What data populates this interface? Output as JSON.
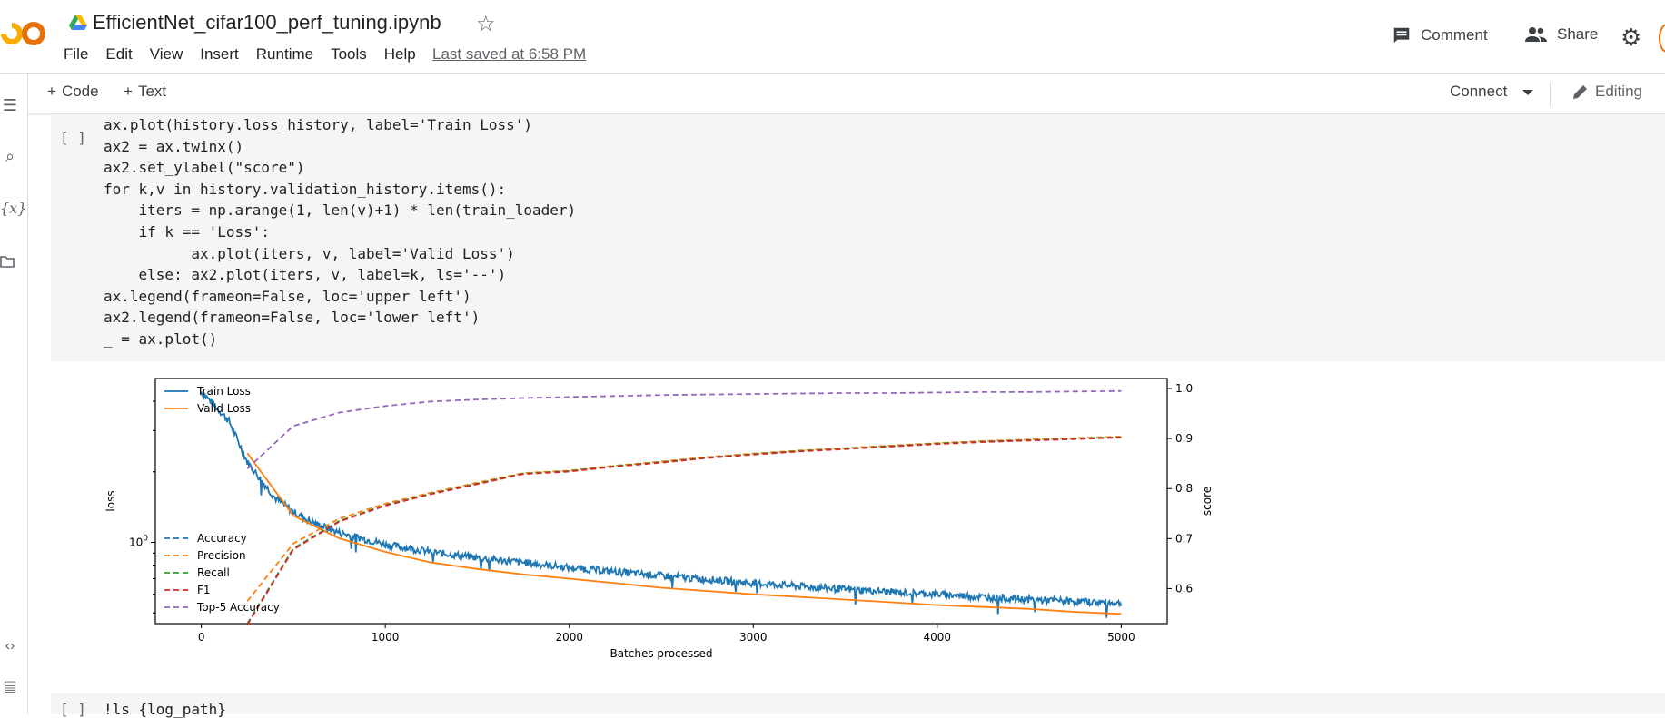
{
  "header": {
    "title": "EfficientNet_cifar100_perf_tuning.ipynb",
    "menu": [
      "File",
      "Edit",
      "View",
      "Insert",
      "Runtime",
      "Tools",
      "Help"
    ],
    "last_saved": "Last saved at 6:58 PM",
    "comment_label": "Comment",
    "share_label": "Share"
  },
  "toolbar": {
    "code_label": "Code",
    "text_label": "Text",
    "connect_label": "Connect",
    "editing_label": "Editing"
  },
  "cell": {
    "run_indicator": "[ ]",
    "code_lines": [
      "ax.plot(history.loss_history, label='Train Loss')",
      "ax2 = ax.twinx()",
      "ax2.set_ylabel(\"score\")",
      "for k,v in history.validation_history.items():",
      "    iters = np.arange(1, len(v)+1) * len(train_loader)",
      "    if k == 'Loss':",
      "          ax.plot(iters, v, label='Valid Loss')",
      "    else: ax2.plot(iters, v, label=k, ls='--')",
      "ax.legend(frameon=False, loc='upper left')",
      "ax2.legend(frameon=False, loc='lower left')",
      "_ = ax.plot()"
    ]
  },
  "next_cell": {
    "run_indicator": "[ ]",
    "code": "!ls {log_path}"
  },
  "chart_data": {
    "type": "line",
    "xlabel": "Batches processed",
    "ylabel_left": "loss",
    "ylabel_right": "score",
    "xlim": [
      -250,
      5250
    ],
    "x_ticks": [
      0,
      1000,
      2000,
      3000,
      4000,
      5000
    ],
    "y_left_scale": "log",
    "y_left_ticks": [
      "10^0"
    ],
    "y_right_ticks": [
      0.6,
      0.7,
      0.8,
      0.9,
      1.0
    ],
    "y_right_lim": [
      0.53,
      1.02
    ],
    "legend_upper_left": [
      "Train Loss",
      "Valid Loss"
    ],
    "legend_lower_left": [
      "Accuracy",
      "Precision",
      "Recall",
      "F1",
      "Top-5 Accuracy"
    ],
    "series": [
      {
        "name": "Train Loss",
        "axis": "left",
        "color": "#1f77b4",
        "style": "solid",
        "noisy": true,
        "x": [
          0,
          150,
          250,
          400,
          500,
          600,
          750,
          1000,
          1250,
          1500,
          1750,
          2000,
          2500,
          3000,
          3500,
          4000,
          4500,
          5000
        ],
        "y": [
          4.4,
          3.3,
          2.2,
          1.55,
          1.35,
          1.22,
          1.1,
          0.98,
          0.91,
          0.86,
          0.82,
          0.78,
          0.72,
          0.67,
          0.63,
          0.6,
          0.57,
          0.55
        ]
      },
      {
        "name": "Valid Loss",
        "axis": "left",
        "color": "#ff7f0e",
        "style": "solid",
        "x": [
          250,
          500,
          750,
          1000,
          1250,
          1500,
          1750,
          2000,
          2250,
          2500,
          2750,
          3000,
          3250,
          3500,
          3750,
          4000,
          4250,
          4500,
          4750,
          5000
        ],
        "y": [
          2.4,
          1.3,
          1.04,
          0.91,
          0.82,
          0.77,
          0.73,
          0.7,
          0.67,
          0.64,
          0.62,
          0.6,
          0.585,
          0.57,
          0.555,
          0.54,
          0.53,
          0.52,
          0.505,
          0.495
        ]
      },
      {
        "name": "Accuracy",
        "axis": "right",
        "color": "#1f77b4",
        "style": "dashed",
        "x": [
          250,
          500,
          750,
          1000,
          1250,
          1500,
          1750,
          2000,
          2250,
          2500,
          2750,
          3000,
          3250,
          3500,
          3750,
          4000,
          4250,
          4500,
          4750,
          5000
        ],
        "y": [
          0.53,
          0.68,
          0.735,
          0.767,
          0.79,
          0.81,
          0.83,
          0.835,
          0.845,
          0.853,
          0.862,
          0.869,
          0.875,
          0.88,
          0.885,
          0.89,
          0.894,
          0.897,
          0.9,
          0.903
        ]
      },
      {
        "name": "Precision",
        "axis": "right",
        "color": "#ff7f0e",
        "style": "dashed",
        "x": [
          250,
          500,
          750,
          1000,
          1250,
          1500,
          1750,
          2000,
          2250,
          2500,
          2750,
          3000,
          3250,
          3500,
          3750,
          4000,
          4250,
          4500,
          4750,
          5000
        ],
        "y": [
          0.575,
          0.69,
          0.74,
          0.77,
          0.792,
          0.812,
          0.831,
          0.836,
          0.846,
          0.854,
          0.863,
          0.87,
          0.876,
          0.881,
          0.886,
          0.891,
          0.895,
          0.898,
          0.901,
          0.904
        ]
      },
      {
        "name": "Recall",
        "axis": "right",
        "color": "#2ca02c",
        "style": "dashed",
        "x": [
          250,
          500,
          750,
          1000,
          1250,
          1500,
          1750,
          2000,
          2250,
          2500,
          2750,
          3000,
          3250,
          3500,
          3750,
          4000,
          4250,
          4500,
          4750,
          5000
        ],
        "y": [
          0.53,
          0.68,
          0.735,
          0.767,
          0.79,
          0.81,
          0.83,
          0.835,
          0.845,
          0.853,
          0.862,
          0.869,
          0.875,
          0.88,
          0.885,
          0.89,
          0.894,
          0.897,
          0.9,
          0.903
        ]
      },
      {
        "name": "F1",
        "axis": "right",
        "color": "#d62728",
        "style": "dashed",
        "x": [
          250,
          500,
          750,
          1000,
          1250,
          1500,
          1750,
          2000,
          2250,
          2500,
          2750,
          3000,
          3250,
          3500,
          3750,
          4000,
          4250,
          4500,
          4750,
          5000
        ],
        "y": [
          0.528,
          0.678,
          0.734,
          0.766,
          0.789,
          0.809,
          0.829,
          0.834,
          0.844,
          0.852,
          0.861,
          0.868,
          0.874,
          0.879,
          0.884,
          0.889,
          0.893,
          0.896,
          0.899,
          0.902
        ]
      },
      {
        "name": "Top-5 Accuracy",
        "axis": "right",
        "color": "#9467bd",
        "style": "dashed",
        "x": [
          250,
          500,
          750,
          1000,
          1250,
          1500,
          1750,
          2000,
          2250,
          2500,
          2750,
          3000,
          3250,
          3500,
          3750,
          4000,
          4250,
          4500,
          4750,
          5000
        ],
        "y": [
          0.84,
          0.925,
          0.952,
          0.965,
          0.974,
          0.978,
          0.981,
          0.983,
          0.985,
          0.987,
          0.988,
          0.989,
          0.99,
          0.991,
          0.991,
          0.992,
          0.993,
          0.993,
          0.994,
          0.995
        ]
      }
    ]
  }
}
